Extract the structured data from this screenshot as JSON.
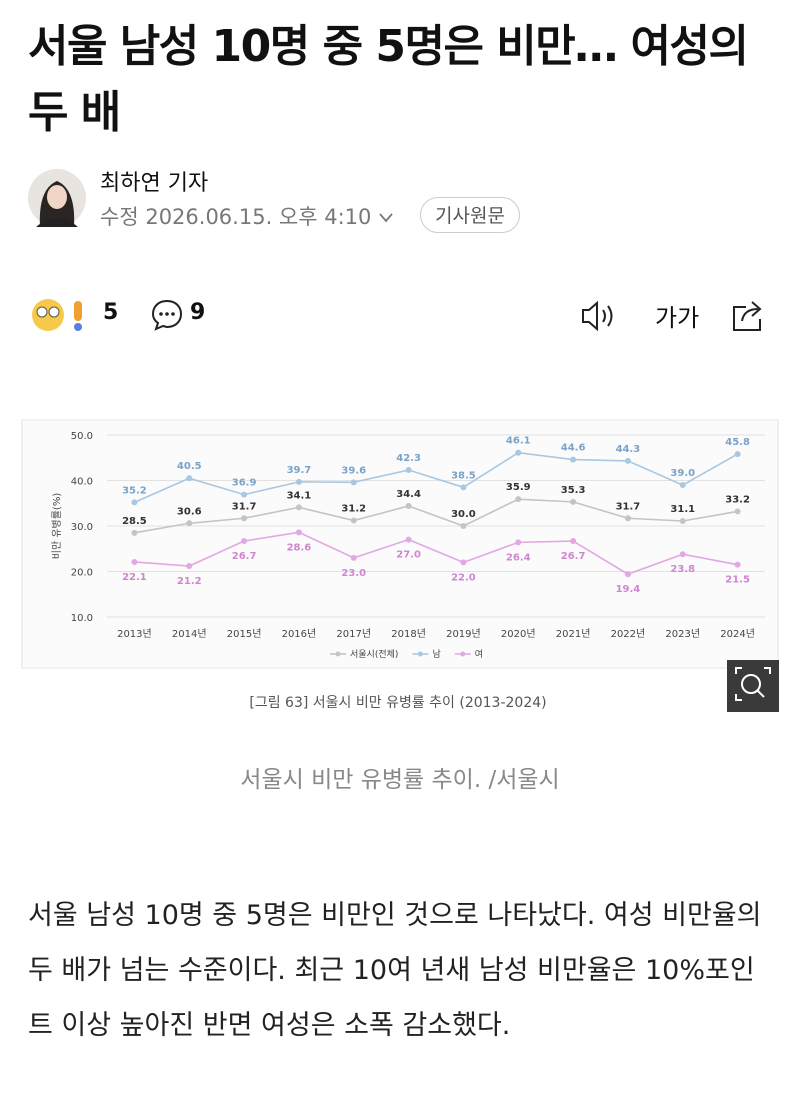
{
  "header": {
    "title": "서울 남성 10명 중 5명은 비만… 여성의 두 배",
    "author": "최하연 기자",
    "modified_label": "수정",
    "modified": "2026.06.15. 오후 4:10",
    "original_button": "기사원문"
  },
  "toolbar": {
    "reactions": 5,
    "comments": 9,
    "font_button": "가가"
  },
  "chart_data": {
    "type": "line",
    "categories": [
      "2013년",
      "2014년",
      "2015년",
      "2016년",
      "2017년",
      "2018년",
      "2019년",
      "2020년",
      "2021년",
      "2022년",
      "2023년",
      "2024년"
    ],
    "ylabel": "비만 유병률(%)",
    "ylim": [
      10,
      50
    ],
    "yticks": [
      {
        "value": 10,
        "label": "10.0"
      },
      {
        "value": 20,
        "label": "20.0"
      },
      {
        "value": 30,
        "label": "30.0"
      },
      {
        "value": 40,
        "label": "40.0"
      },
      {
        "value": 50,
        "label": "50.0"
      }
    ],
    "grid": true,
    "series": [
      {
        "name": "서울시(전체)",
        "color": "#c4c4c4",
        "label_color": "#333333",
        "label_side": "above",
        "values": [
          28.5,
          30.6,
          31.7,
          34.1,
          31.2,
          34.4,
          30.0,
          35.9,
          35.3,
          31.7,
          31.1,
          33.2
        ],
        "value_labels": [
          "28.5",
          "30.6",
          "31.7",
          "34.1",
          "31.2",
          "34.4",
          "30.0",
          "35.9",
          "35.3",
          "31.7",
          "31.1",
          "33.2"
        ]
      },
      {
        "name": "남",
        "color": "#a8c7e2",
        "label_color": "#7aa3c8",
        "label_side": "above",
        "values": [
          35.2,
          40.5,
          36.9,
          39.7,
          39.6,
          42.3,
          38.5,
          46.1,
          44.6,
          44.3,
          39.0,
          45.8
        ],
        "value_labels": [
          "35.2",
          "40.5",
          "36.9",
          "39.7",
          "39.6",
          "42.3",
          "38.5",
          "46.1",
          "44.6",
          "44.3",
          "39.0",
          "45.8"
        ]
      },
      {
        "name": "여",
        "color": "#e3a7e3",
        "label_color": "#cf86d0",
        "label_side": "below",
        "values": [
          22.1,
          21.2,
          26.7,
          28.6,
          23.0,
          27.0,
          22.0,
          26.4,
          26.7,
          19.4,
          23.8,
          21.5
        ],
        "value_labels": [
          "22.1",
          "21.2",
          "26.7",
          "28.6",
          "23.0",
          "27.0",
          "22.0",
          "26.4",
          "26.7",
          "19.4",
          "23.8",
          "21.5"
        ]
      }
    ]
  },
  "figure": {
    "caption_inner": "[그림 63] 서울시 비만 유병률 추이 (2013-2024)",
    "caption": "서울시 비만 유병률 추이. /서울시"
  },
  "body": {
    "paragraph": "서울 남성 10명 중 5명은 비만인 것으로 나타났다. 여성 비만율의 두 배가 넘는 수준이다. 최근 10여 년새 남성 비만율은 10%포인트 이상 높아진 반면 여성은 소폭 감소했다."
  }
}
